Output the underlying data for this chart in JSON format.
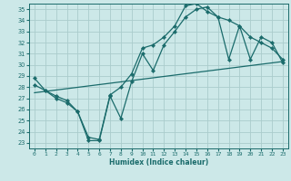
{
  "xlabel": "Humidex (Indice chaleur)",
  "xlim": [
    -0.5,
    23.5
  ],
  "ylim": [
    22.5,
    35.5
  ],
  "yticks": [
    23,
    24,
    25,
    26,
    27,
    28,
    29,
    30,
    31,
    32,
    33,
    34,
    35
  ],
  "xticks": [
    0,
    1,
    2,
    3,
    4,
    5,
    6,
    7,
    8,
    9,
    10,
    11,
    12,
    13,
    14,
    15,
    16,
    17,
    18,
    19,
    20,
    21,
    22,
    23
  ],
  "bg_color": "#cce8e8",
  "grid_color": "#aacccc",
  "line_color": "#1a6b6b",
  "line1_x": [
    0,
    1,
    2,
    3,
    4,
    5,
    6,
    7,
    8,
    9,
    10,
    11,
    12,
    13,
    14,
    15,
    16,
    17,
    18,
    19,
    20,
    21,
    22,
    23
  ],
  "line1_y": [
    28.8,
    27.7,
    27.0,
    26.6,
    25.8,
    23.2,
    23.2,
    27.2,
    25.2,
    28.5,
    31.0,
    29.5,
    31.8,
    33.0,
    34.3,
    35.0,
    35.2,
    34.3,
    30.5,
    33.5,
    32.5,
    32.0,
    31.5,
    30.5
  ],
  "line2_x": [
    0,
    1,
    2,
    3,
    4,
    5,
    6,
    7,
    8,
    9,
    10,
    11,
    12,
    13,
    14,
    15,
    16,
    17,
    18,
    19,
    20,
    21,
    22,
    23
  ],
  "line2_y": [
    28.2,
    27.7,
    27.2,
    26.8,
    25.8,
    23.5,
    23.3,
    27.3,
    28.0,
    29.2,
    31.5,
    31.8,
    32.5,
    33.5,
    35.3,
    35.5,
    34.8,
    34.3,
    34.0,
    33.5,
    30.5,
    32.5,
    32.0,
    30.2
  ],
  "line3_x": [
    0,
    23
  ],
  "line3_y": [
    27.5,
    30.3
  ]
}
